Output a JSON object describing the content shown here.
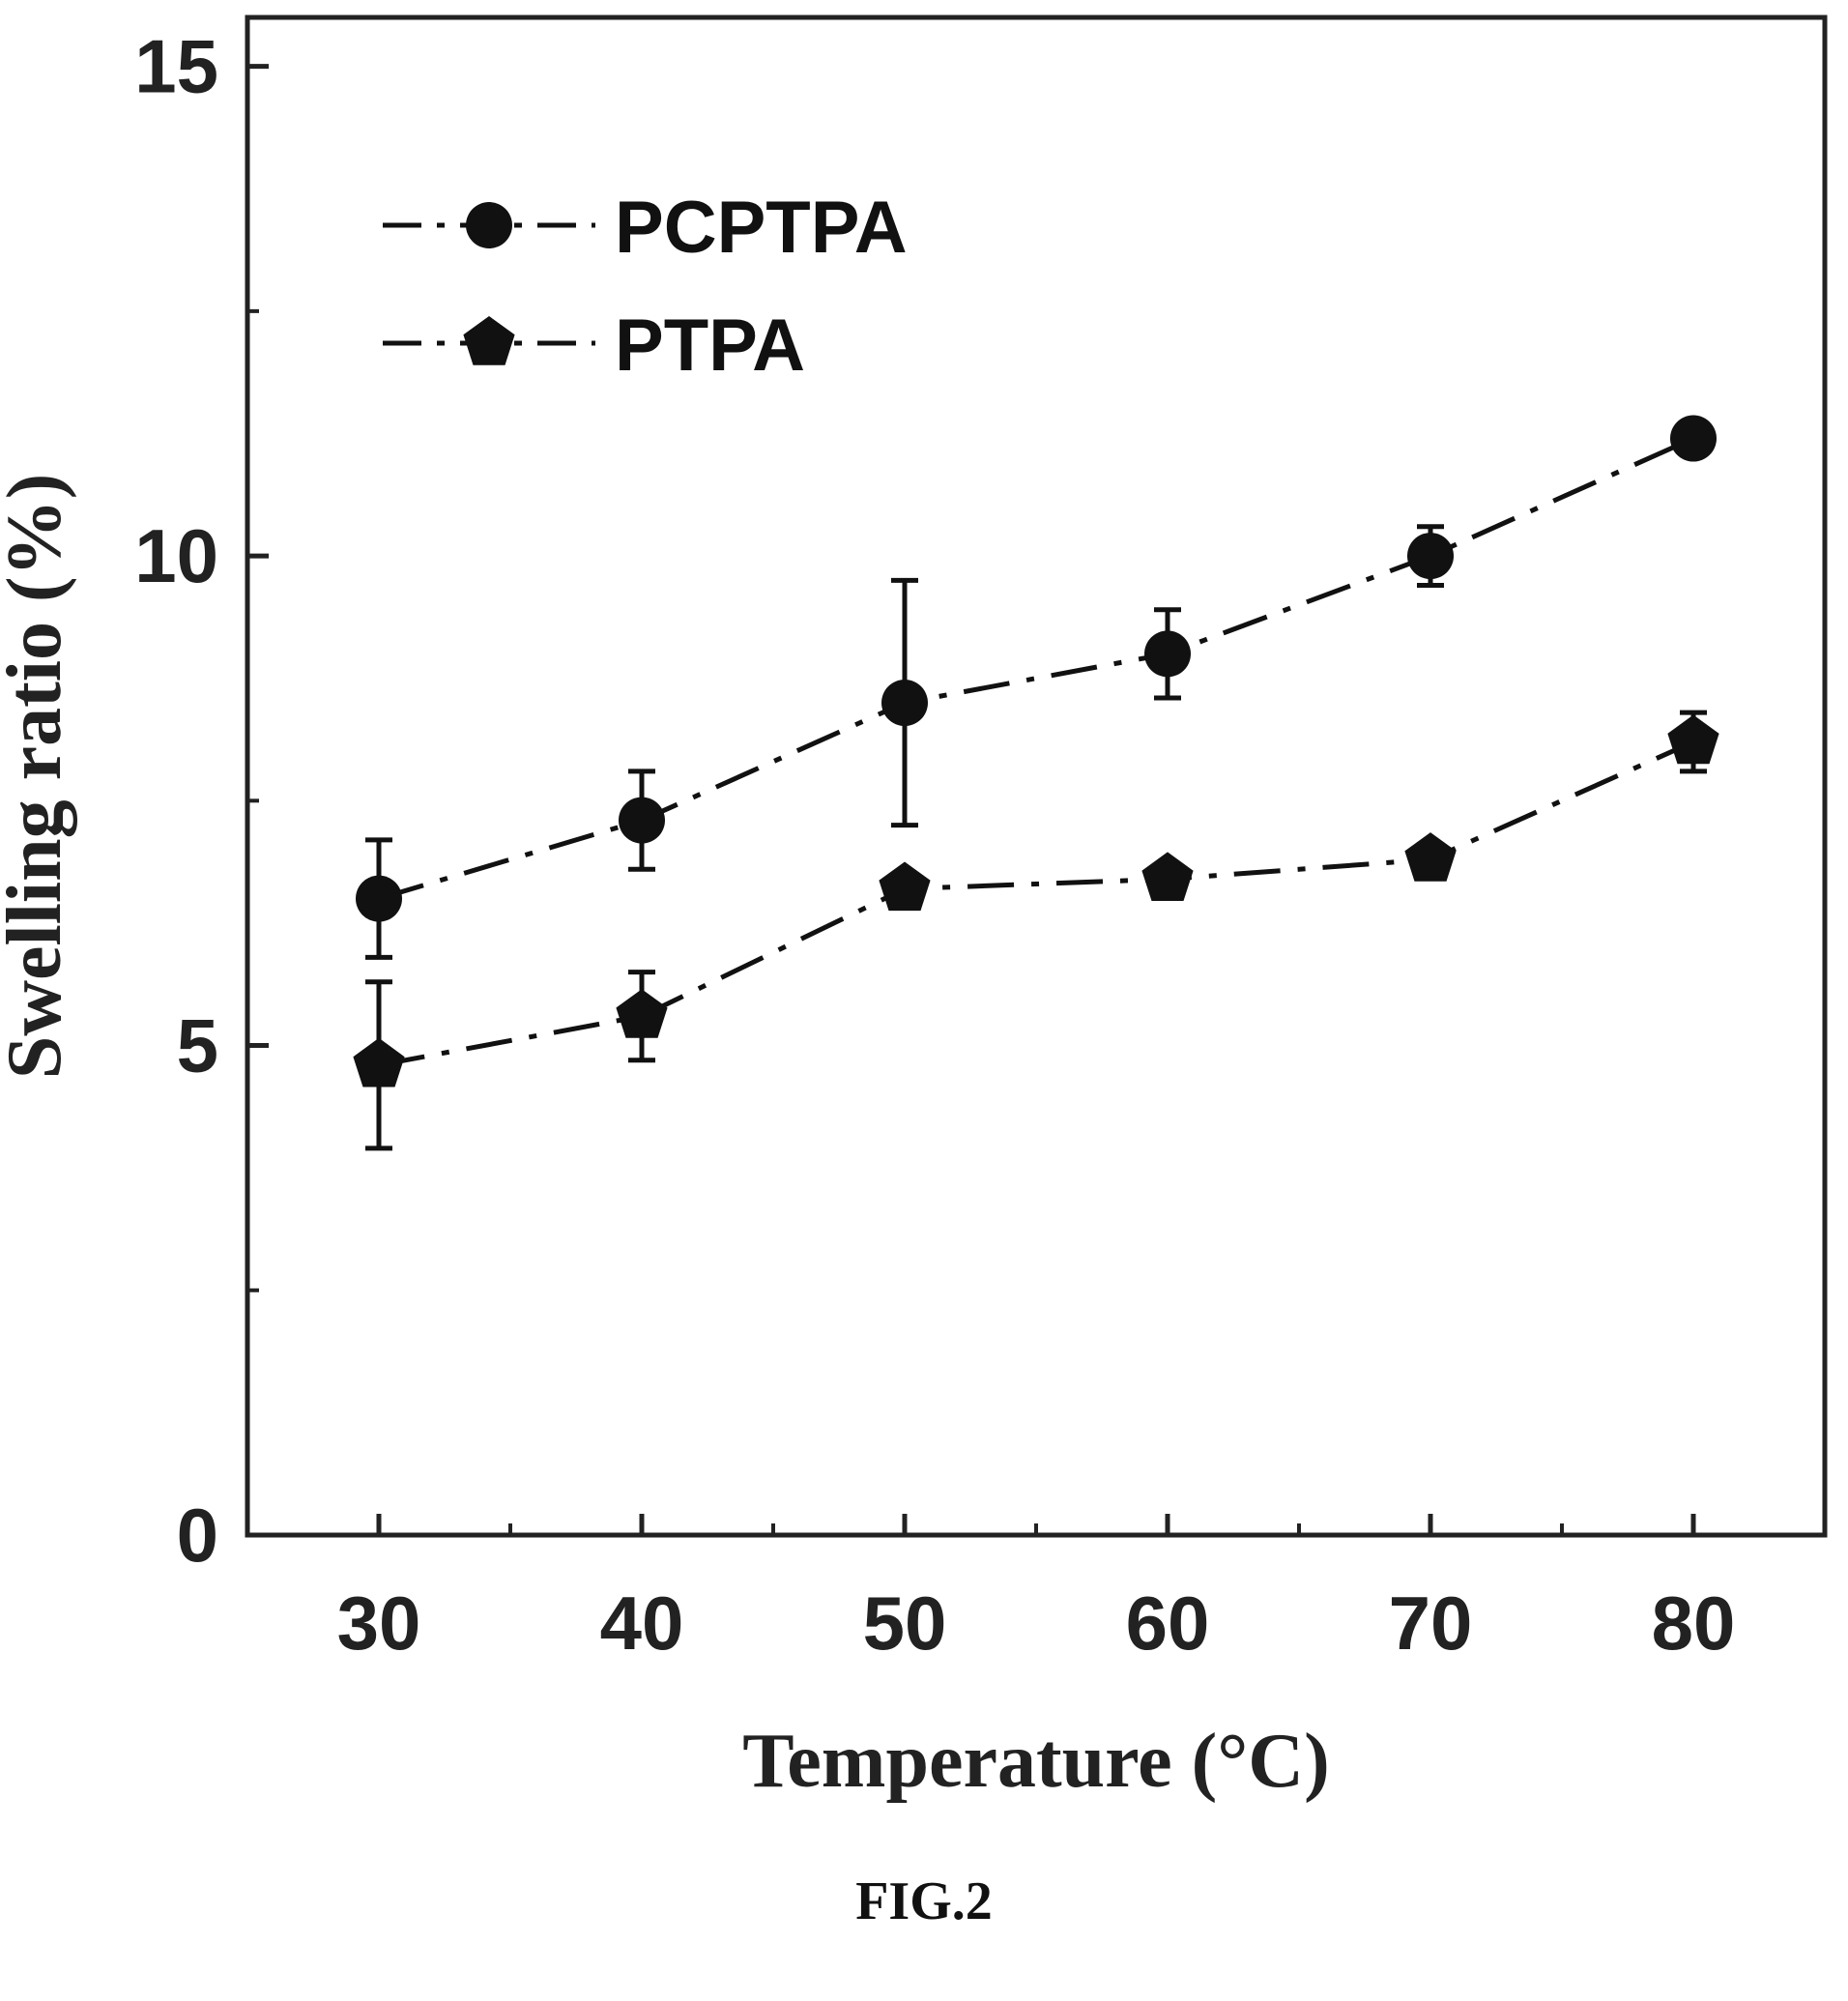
{
  "caption": "FIG.2",
  "colors": {
    "ink": "#111111",
    "axis": "#222222",
    "background": "#ffffff"
  },
  "chart_data": {
    "type": "line",
    "xlabel": "Temperature (°C)",
    "ylabel": "Swelling ratio (%)",
    "xlim": [
      25,
      85
    ],
    "ylim": [
      0,
      15.5
    ],
    "x": [
      30,
      40,
      50,
      60,
      70,
      80
    ],
    "x_tick_labels": [
      "30",
      "40",
      "50",
      "60",
      "70",
      "80"
    ],
    "y_tick_values": [
      0,
      5,
      10,
      15
    ],
    "y_tick_labels": [
      "0",
      "5",
      "10",
      "15"
    ],
    "y_minor_ticks": [
      2.5,
      7.5,
      12.5
    ],
    "x_minor_ticks": [
      35,
      45,
      55,
      65,
      75
    ],
    "grid": false,
    "legend_position": "top-left",
    "line_style": "dash-dot",
    "series": [
      {
        "name": "PCPTPA",
        "marker": "circle",
        "values": [
          6.5,
          7.3,
          8.5,
          9.0,
          10.0,
          11.2
        ],
        "errors": [
          0.6,
          0.5,
          1.25,
          0.45,
          0.3,
          0.15
        ]
      },
      {
        "name": "PTPA",
        "marker": "pentagon",
        "values": [
          4.8,
          5.3,
          6.6,
          6.7,
          6.9,
          8.1
        ],
        "errors": [
          0.85,
          0.45,
          0.1,
          0.1,
          0.1,
          0.3
        ]
      }
    ]
  }
}
